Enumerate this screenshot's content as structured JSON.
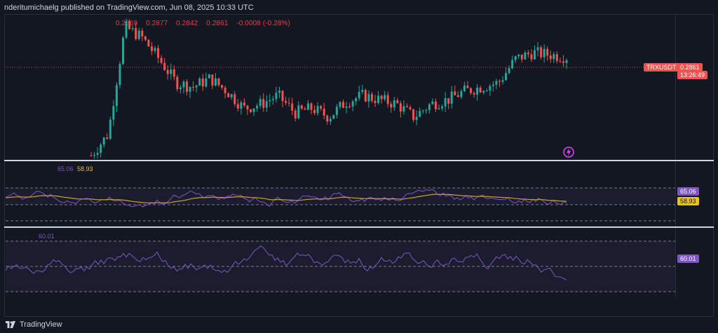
{
  "header": {
    "published_text": "nderitumichaelg published on TradingView.com, Jun 08, 2025 10:33 UTC"
  },
  "ohlc": {
    "open": "0.2869",
    "high": "0.2877",
    "low": "0.2842",
    "close": "0.2861",
    "change": "-0.0008 (-0.28%)"
  },
  "price_axis": {
    "symbol": "TRXUSDT",
    "last_price": "0.2861",
    "countdown": "13:26:49"
  },
  "indicator1": {
    "value_a": "65.06",
    "value_b": "58.93",
    "badge_a": "65.06",
    "badge_b": "58.93"
  },
  "indicator2": {
    "value": "60.01",
    "badge": "60.01"
  },
  "footer": {
    "brand": "TradingView"
  },
  "colors": {
    "background": "#131722",
    "up": "#26a69a",
    "down": "#ef5350",
    "rsi_line": "#7e57c2",
    "ma_line": "#c9a227",
    "grid": "#2a2e39"
  },
  "icons": [
    "lightning-icon",
    "tradingview-logo-icon"
  ],
  "chart_data": {
    "type": "candlestick",
    "title": "TRXUSDT",
    "last": 0.2861,
    "close_trend": [
      0.24,
      0.25,
      0.3,
      0.295,
      0.285,
      0.274,
      0.272,
      0.276,
      0.27,
      0.262,
      0.264,
      0.268,
      0.26,
      0.262,
      0.258,
      0.265,
      0.268,
      0.266,
      0.264,
      0.258,
      0.264,
      0.266,
      0.27,
      0.272,
      0.274,
      0.285,
      0.288,
      0.287,
      0.286
    ],
    "indicator1": {
      "series": [
        {
          "name": "65.06",
          "last": 65.06
        },
        {
          "name": "58.93",
          "last": 58.93
        }
      ]
    },
    "indicator2": {
      "series": [
        {
          "name": "60.01",
          "last": 60.01
        }
      ]
    }
  }
}
